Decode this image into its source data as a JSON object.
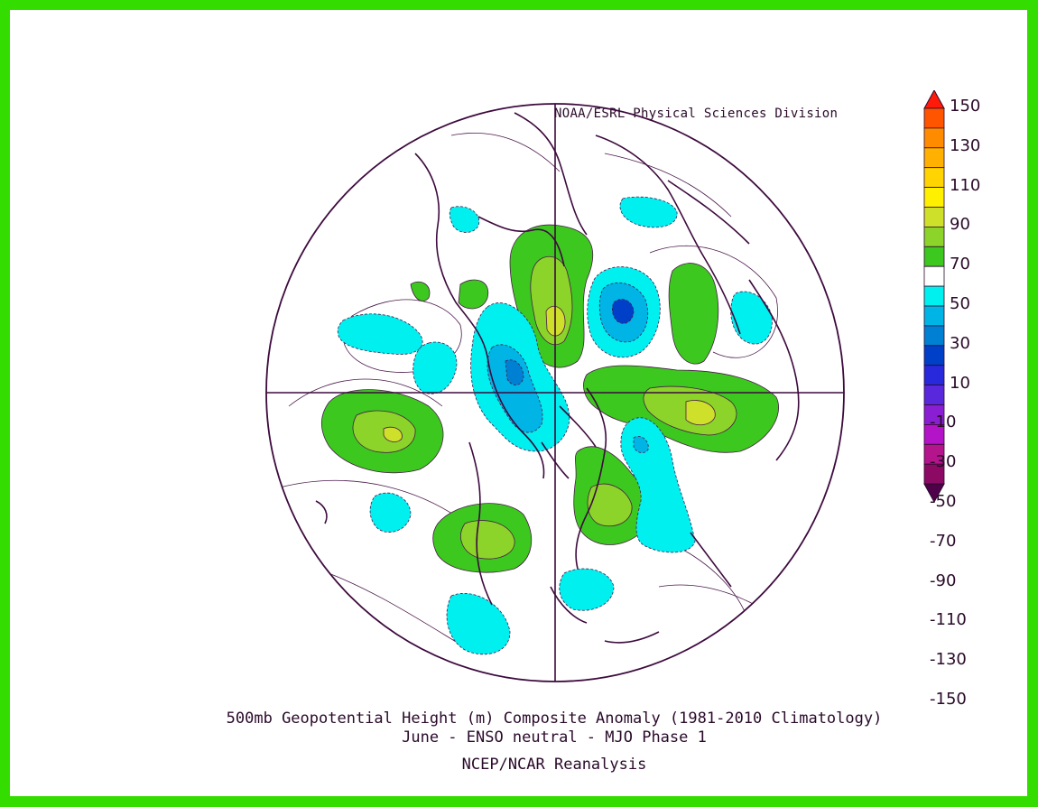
{
  "credit": "NOAA/ESRL Physical Sciences Division",
  "title_line1": "500mb Geopotential Height (m) Composite Anomaly (1981-2010 Climatology)",
  "title_line2": "June - ENSO neutral - MJO Phase 1",
  "title_line3": "NCEP/NCAR Reanalysis",
  "colorbar": {
    "labels": [
      "150",
      "130",
      "110",
      "90",
      "70",
      "50",
      "30",
      "10",
      "-10",
      "-30",
      "-50",
      "-70",
      "-90",
      "-110",
      "-130",
      "-150"
    ],
    "colors": [
      "#ff1a0a",
      "#ff5500",
      "#ff8c00",
      "#ffb000",
      "#ffd400",
      "#fff000",
      "#cfe02a",
      "#8cd42a",
      "#3cc81e",
      "#ffffff",
      "#00f0f0",
      "#00b4e6",
      "#0080d2",
      "#0040c8",
      "#2828dc",
      "#5a28dc",
      "#8a1ed2",
      "#b414c8",
      "#b4148c",
      "#8c0a64",
      "#50004b"
    ]
  },
  "colors": {
    "positive_light": "#3cc81e",
    "positive_mid": "#8cd42a",
    "positive_strong": "#cfe02a",
    "negative_light": "#00f0f0",
    "negative_mid": "#00b4e6",
    "negative_strong": "#0040c8",
    "coast": "#3d0a3d",
    "contour": "#4a1a4a"
  }
}
